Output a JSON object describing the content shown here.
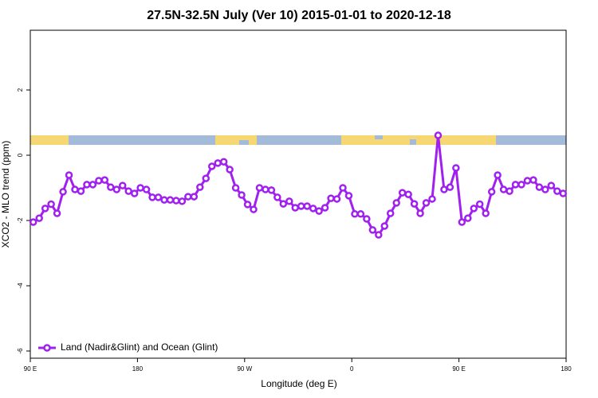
{
  "chart_data": {
    "type": "line",
    "title": "27.5N-32.5N July (Ver 10)   2015-01-01 to 2020-12-18",
    "x_label": "Longitude (deg E)",
    "y_label": "XCO2 - MLO trend (ppm)",
    "xlim": [
      90,
      540
    ],
    "xticks": [
      {
        "value": 90,
        "label": "90 E"
      },
      180,
      {
        "value": 270,
        "label": "90 W"
      },
      {
        "value": 360,
        "label": "0"
      },
      {
        "value": 450,
        "label": "90 E"
      },
      {
        "value": 540,
        "label": "180"
      }
    ],
    "ylim": [
      -6.22,
      3.83
    ],
    "yticks": [
      -6,
      -4,
      -2,
      0,
      2
    ],
    "legend": "bottom-left",
    "series": [
      {
        "name": "Land (Nadir&Glint) and Ocean (Glint)",
        "color": "#a020f0",
        "x": [
          92.5,
          97.5,
          102.5,
          107.5,
          112.5,
          117.5,
          122.5,
          127.5,
          132.5,
          137.5,
          142.5,
          147.5,
          152.5,
          157.5,
          162.5,
          167.5,
          172.5,
          177.5,
          182.5,
          187.5,
          192.5,
          197.5,
          202.5,
          207.5,
          212.5,
          217.5,
          222.5,
          227.5,
          232.5,
          237.5,
          242.5,
          247.5,
          252.5,
          257.5,
          262.5,
          267.5,
          272.5,
          277.5,
          282.5,
          287.5,
          292.5,
          297.5,
          302.5,
          307.5,
          312.5,
          317.5,
          322.5,
          327.5,
          332.5,
          337.5,
          342.5,
          347.5,
          352.5,
          357.5,
          362.5,
          367.5,
          372.5,
          377.5,
          382.5,
          387.5,
          392.5,
          397.5,
          402.5,
          407.5,
          412.5,
          417.5,
          422.5,
          427.5,
          432.5,
          437.5,
          442.5,
          447.5,
          452.5,
          457.5,
          462.5,
          467.5,
          472.5,
          477.5,
          482.5,
          487.5,
          492.5,
          497.5,
          502.5,
          507.5,
          512.5,
          517.5,
          522.5,
          527.5,
          532.5,
          537.5
        ],
        "values": [
          -2.05,
          -1.93,
          -1.63,
          -1.5,
          -1.78,
          -1.12,
          -0.61,
          -1.05,
          -1.1,
          -0.9,
          -0.9,
          -0.78,
          -0.76,
          -0.98,
          -1.05,
          -0.93,
          -1.1,
          -1.17,
          -1.0,
          -1.05,
          -1.29,
          -1.29,
          -1.37,
          -1.37,
          -1.39,
          -1.41,
          -1.27,
          -1.27,
          -0.98,
          -0.71,
          -0.34,
          -0.24,
          -0.2,
          -0.44,
          -1.0,
          -1.22,
          -1.51,
          -1.66,
          -1.0,
          -1.05,
          -1.07,
          -1.29,
          -1.49,
          -1.41,
          -1.61,
          -1.56,
          -1.56,
          -1.63,
          -1.71,
          -1.61,
          -1.32,
          -1.34,
          -1.0,
          -1.24,
          -1.8,
          -1.8,
          -1.95,
          -2.29,
          -2.44,
          -2.17,
          -1.78,
          -1.46,
          -1.15,
          -1.2,
          -1.49,
          -1.78,
          -1.46,
          -1.34,
          0.61,
          -1.05,
          -0.98,
          -0.39,
          -2.05,
          -1.93,
          -1.63,
          -1.5,
          -1.78,
          -1.12,
          -0.61,
          -1.05,
          -1.1,
          -0.9,
          -0.9,
          -0.78,
          -0.76,
          -0.98,
          -1.05,
          -0.93,
          -1.1,
          -1.17
        ]
      }
    ]
  }
}
